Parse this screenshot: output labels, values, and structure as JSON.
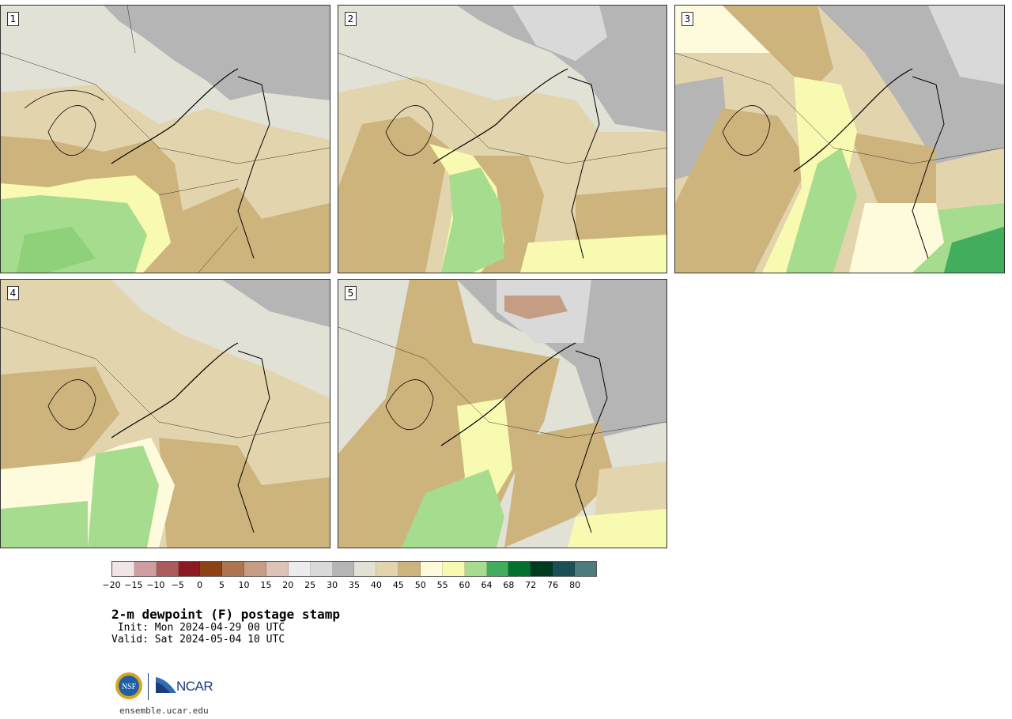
{
  "panels": [
    {
      "label": "1"
    },
    {
      "label": "2"
    },
    {
      "label": "3"
    },
    {
      "label": "4"
    },
    {
      "label": "5"
    }
  ],
  "colorbar": {
    "colors": [
      "#f1e5e5",
      "#cf9ea0",
      "#ad5a5c",
      "#8c1a22",
      "#8b4315",
      "#ad7550",
      "#c59d84",
      "#dcc3b5",
      "#ececec",
      "#d9d9d9",
      "#b5b5b5",
      "#e2e1d6",
      "#e2d4ad",
      "#cdb47d",
      "#fefbdc",
      "#f7fab0",
      "#a6dc8d",
      "#41ad5d",
      "#03722f",
      "#003b20",
      "#1a5156",
      "#4e7c7d"
    ],
    "ticks": [
      "−20",
      "−15",
      "−10",
      "−5",
      "0",
      "5",
      "10",
      "15",
      "20",
      "25",
      "30",
      "35",
      "40",
      "45",
      "50",
      "55",
      "60",
      "64",
      "68",
      "72",
      "76",
      "80"
    ]
  },
  "title": "2-m dewpoint (F) postage stamp",
  "init": " Init: Mon 2024-04-29 00 UTC",
  "valid": "Valid: Sat 2024-05-04 10 UTC",
  "logos": {
    "nsf": "NSF",
    "ncar": "NCAR"
  },
  "site": "ensemble.ucar.edu"
}
